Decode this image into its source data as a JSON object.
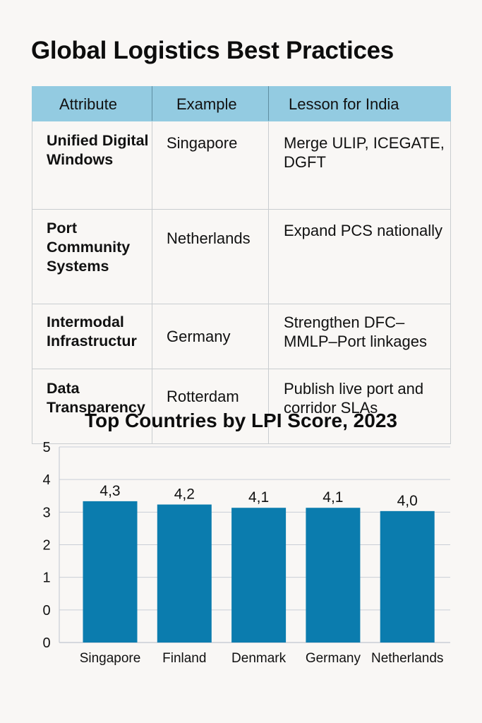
{
  "page": {
    "title": "Global Logistics Best Practices"
  },
  "table": {
    "headers": [
      "Attribute",
      "Example",
      "Lesson for India"
    ],
    "rows": [
      {
        "attribute": "Unified Digital Windows",
        "example": "Singapore",
        "lesson": "Merge ULIP, ICEGATE, DGFT"
      },
      {
        "attribute": "Port Community Systems",
        "example": "Netherlands",
        "lesson": "Expand PCS nationally"
      },
      {
        "attribute": "Intermodal Infrastructur",
        "example": "Germany",
        "lesson": "Strengthen DFC–MMLP–Port linkages"
      },
      {
        "attribute": "Data Transparency",
        "example": "Rotterdam",
        "lesson": "Publish live port and corridor SLAs"
      }
    ]
  },
  "colors": {
    "background": "#f9f7f5",
    "header_bg": "#93cbe1",
    "bar": "#0b7cae",
    "grid": "#c9ced6",
    "text": "#111111"
  },
  "chart_data": {
    "type": "bar",
    "title": "Top Countries by LPI Score, 2023",
    "xlabel": "",
    "ylabel": "",
    "categories": [
      "Singapore",
      "Finland",
      "Denmark",
      "Germany",
      "Netherlands"
    ],
    "values": [
      4.3,
      4.2,
      4.1,
      4.1,
      4.0
    ],
    "value_labels": [
      "4,3",
      "4,2",
      "4,1",
      "4,1",
      "4,0"
    ],
    "y_tick_labels": [
      "5",
      "4",
      "3",
      "2",
      "1",
      "0",
      "0"
    ],
    "ylim": [
      0,
      5
    ],
    "grid": true,
    "legend": "none"
  }
}
